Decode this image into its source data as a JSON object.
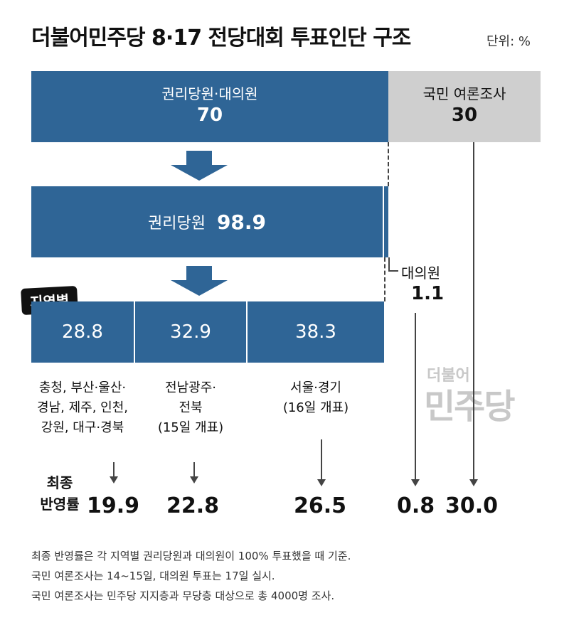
{
  "title": "더불어민주당 8·17 전당대회 투표인단 구조",
  "unit": "단위: %",
  "top": {
    "members_delegates": {
      "label": "권리당원·대의원",
      "value": "70"
    },
    "poll": {
      "label": "국민 여론조사",
      "value": "30"
    }
  },
  "middle": {
    "label": "권리당원",
    "value": "98.9"
  },
  "delegates": {
    "label": "대의원",
    "value": "1.1"
  },
  "regional_badge": "지역별",
  "regions": [
    {
      "value": "28.8",
      "desc": [
        "충청, 부산·울산·",
        "경남, 제주, 인천,",
        "강원, 대구·경북"
      ]
    },
    {
      "value": "32.9",
      "desc": [
        "전남광주·",
        "전북",
        "(15일 개표)"
      ]
    },
    {
      "value": "38.3",
      "desc": [
        "서울·경기",
        "(16일 개표)"
      ]
    }
  ],
  "final": {
    "label": [
      "최종",
      "반영률"
    ],
    "values": [
      "19.9",
      "22.8",
      "26.5",
      "0.8",
      "30.0"
    ]
  },
  "notes": [
    "최종 반영률은 각 지역별 권리당원과 대의원이 100% 투표했을 때 기준.",
    "국민 여론조사는 14~15일, 대의원 투표는 17일 실시.",
    "국민 여론조사는 민주당 지지층과 무당층 대상으로 총 4000명 조사."
  ],
  "watermark": {
    "small": "더불어",
    "big": "민주당"
  },
  "colors": {
    "blue": "#2f6596",
    "gray": "#cfcfcf",
    "badge": "#111111"
  }
}
